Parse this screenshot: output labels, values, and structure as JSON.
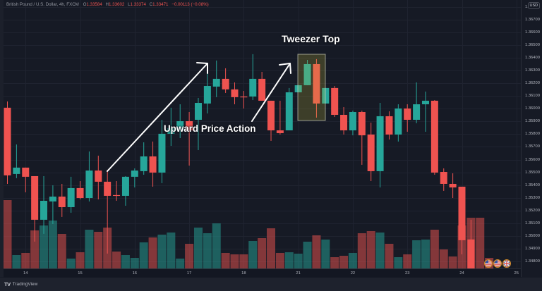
{
  "header": {
    "symbol": "British Pound / U.S. Dollar, 4h, FXCM",
    "o_label": "O",
    "o": "1.33584",
    "h_label": "H",
    "h": "1.33602",
    "l_label": "L",
    "l": "1.33374",
    "c_label": "C",
    "c": "1.33471",
    "change": "−0.00113 (−0.08%)"
  },
  "price_axis": {
    "currency_badge": "USD"
  },
  "annotations": {
    "tweezer_label": "Tweezer Top",
    "upward_label": "Upward Price Action"
  },
  "events": [
    {
      "icon": "us-flag-icon"
    },
    {
      "icon": "us-flag-icon"
    },
    {
      "icon": "uk-flag-icon"
    }
  ],
  "footer": {
    "brand_logo": "TV",
    "brand": "TradingView"
  },
  "colors": {
    "up": "#26a69a",
    "down": "#ef5350",
    "volume_up": "rgba(38,166,154,0.5)",
    "volume_down": "rgba(239,83,80,0.5)",
    "grid": "#1f2330",
    "annotation": "#ffffff",
    "highlight_box": "rgba(200,190,60,0.22)"
  },
  "chart_data": {
    "type": "candlestick",
    "title": "British Pound / U.S. Dollar, 4h, FXCM",
    "xlabel": "",
    "ylabel": "USD",
    "ylim": [
      1.34744,
      1.36855
    ],
    "grid": true,
    "yticks": [
      "1.34800",
      "1.34900",
      "1.35000",
      "1.35100",
      "1.35200",
      "1.35300",
      "1.35400",
      "1.35500",
      "1.35600",
      "1.35700",
      "1.35800",
      "1.35900",
      "1.36000",
      "1.36100",
      "1.36200",
      "1.36300",
      "1.36400",
      "1.36500",
      "1.36600",
      "1.36700",
      "1.36800"
    ],
    "xticks": [
      {
        "label": "14",
        "index": 2
      },
      {
        "label": "15",
        "index": 8
      },
      {
        "label": "16",
        "index": 14
      },
      {
        "label": "17",
        "index": 20
      },
      {
        "label": "18",
        "index": 26
      },
      {
        "label": "21",
        "index": 32
      },
      {
        "label": "22",
        "index": 38
      },
      {
        "label": "23",
        "index": 44
      },
      {
        "label": "24",
        "index": 50
      },
      {
        "label": "25",
        "index": 56
      }
    ],
    "candles": [
      {
        "o": 1.36008,
        "h": 1.36057,
        "l": 1.35409,
        "c": 1.35476,
        "v": 97
      },
      {
        "o": 1.35487,
        "h": 1.35719,
        "l": 1.35454,
        "c": 1.35537,
        "v": 19
      },
      {
        "o": 1.35537,
        "h": 1.35537,
        "l": 1.35343,
        "c": 1.35465,
        "v": 22
      },
      {
        "o": 1.3547,
        "h": 1.3547,
        "l": 1.34955,
        "c": 1.35127,
        "v": 54
      },
      {
        "o": 1.35127,
        "h": 1.3547,
        "l": 1.35016,
        "c": 1.35276,
        "v": 61
      },
      {
        "o": 1.35271,
        "h": 1.35398,
        "l": 1.35093,
        "c": 1.35309,
        "v": 68
      },
      {
        "o": 1.35309,
        "h": 1.35409,
        "l": 1.35149,
        "c": 1.35226,
        "v": 49
      },
      {
        "o": 1.35226,
        "h": 1.35465,
        "l": 1.35182,
        "c": 1.35376,
        "v": 14
      },
      {
        "o": 1.35376,
        "h": 1.35431,
        "l": 1.35287,
        "c": 1.35298,
        "v": 23
      },
      {
        "o": 1.35298,
        "h": 1.35664,
        "l": 1.35271,
        "c": 1.35514,
        "v": 55
      },
      {
        "o": 1.35514,
        "h": 1.35631,
        "l": 1.35287,
        "c": 1.35426,
        "v": 52
      },
      {
        "o": 1.35426,
        "h": 1.3552,
        "l": 1.34861,
        "c": 1.35315,
        "v": 58
      },
      {
        "o": 1.35321,
        "h": 1.35431,
        "l": 1.35276,
        "c": 1.35315,
        "v": 24
      },
      {
        "o": 1.35315,
        "h": 1.3547,
        "l": 1.35237,
        "c": 1.35465,
        "v": 19
      },
      {
        "o": 1.35465,
        "h": 1.35531,
        "l": 1.35381,
        "c": 1.35514,
        "v": 15
      },
      {
        "o": 1.35509,
        "h": 1.35736,
        "l": 1.35481,
        "c": 1.35625,
        "v": 37
      },
      {
        "o": 1.35625,
        "h": 1.35742,
        "l": 1.35387,
        "c": 1.35498,
        "v": 44
      },
      {
        "o": 1.35498,
        "h": 1.35913,
        "l": 1.35415,
        "c": 1.35803,
        "v": 48
      },
      {
        "o": 1.35803,
        "h": 1.36008,
        "l": 1.35708,
        "c": 1.35847,
        "v": 51
      },
      {
        "o": 1.3583,
        "h": 1.36035,
        "l": 1.35769,
        "c": 1.35902,
        "v": 14
      },
      {
        "o": 1.35902,
        "h": 1.35974,
        "l": 1.35553,
        "c": 1.3583,
        "v": 35
      },
      {
        "o": 1.35913,
        "h": 1.36085,
        "l": 1.35675,
        "c": 1.36046,
        "v": 58
      },
      {
        "o": 1.36041,
        "h": 1.3629,
        "l": 1.35963,
        "c": 1.36179,
        "v": 50
      },
      {
        "o": 1.36174,
        "h": 1.36379,
        "l": 1.36091,
        "c": 1.36235,
        "v": 64
      },
      {
        "o": 1.36235,
        "h": 1.36318,
        "l": 1.36124,
        "c": 1.36152,
        "v": 22
      },
      {
        "o": 1.36152,
        "h": 1.36207,
        "l": 1.36035,
        "c": 1.36091,
        "v": 20
      },
      {
        "o": 1.36096,
        "h": 1.3614,
        "l": 1.36002,
        "c": 1.36094,
        "v": 20
      },
      {
        "o": 1.36096,
        "h": 1.36429,
        "l": 1.36068,
        "c": 1.36235,
        "v": 39
      },
      {
        "o": 1.36235,
        "h": 1.3629,
        "l": 1.36063,
        "c": 1.36063,
        "v": 43
      },
      {
        "o": 1.36063,
        "h": 1.36063,
        "l": 1.35747,
        "c": 1.3583,
        "v": 57
      },
      {
        "o": 1.3583,
        "h": 1.36063,
        "l": 1.35797,
        "c": 1.35808,
        "v": 22
      },
      {
        "o": 1.3583,
        "h": 1.36163,
        "l": 1.3583,
        "c": 1.36129,
        "v": 23
      },
      {
        "o": 1.36129,
        "h": 1.36185,
        "l": 1.36129,
        "c": 1.36185,
        "v": 21
      },
      {
        "o": 1.36185,
        "h": 1.36384,
        "l": 1.36185,
        "c": 1.36351,
        "v": 38
      },
      {
        "o": 1.36351,
        "h": 1.3639,
        "l": 1.3593,
        "c": 1.36041,
        "v": 47
      },
      {
        "o": 1.36041,
        "h": 1.36163,
        "l": 1.36041,
        "c": 1.36163,
        "v": 41
      },
      {
        "o": 1.36163,
        "h": 1.36179,
        "l": 1.35935,
        "c": 1.35952,
        "v": 16
      },
      {
        "o": 1.35952,
        "h": 1.36013,
        "l": 1.35797,
        "c": 1.3583,
        "v": 18
      },
      {
        "o": 1.3583,
        "h": 1.35985,
        "l": 1.35791,
        "c": 1.35974,
        "v": 22
      },
      {
        "o": 1.35974,
        "h": 1.35985,
        "l": 1.35559,
        "c": 1.35791,
        "v": 50
      },
      {
        "o": 1.35797,
        "h": 1.35891,
        "l": 1.35431,
        "c": 1.35509,
        "v": 53
      },
      {
        "o": 1.35509,
        "h": 1.36046,
        "l": 1.35381,
        "c": 1.35941,
        "v": 51
      },
      {
        "o": 1.35941,
        "h": 1.3598,
        "l": 1.35758,
        "c": 1.35797,
        "v": 35
      },
      {
        "o": 1.35797,
        "h": 1.36035,
        "l": 1.35742,
        "c": 1.36002,
        "v": 16
      },
      {
        "o": 1.36002,
        "h": 1.36035,
        "l": 1.35819,
        "c": 1.35913,
        "v": 20
      },
      {
        "o": 1.35913,
        "h": 1.36207,
        "l": 1.35886,
        "c": 1.36035,
        "v": 40
      },
      {
        "o": 1.36035,
        "h": 1.36135,
        "l": 1.35819,
        "c": 1.36063,
        "v": 41
      },
      {
        "o": 1.36063,
        "h": 1.36068,
        "l": 1.35481,
        "c": 1.35498,
        "v": 55
      },
      {
        "o": 1.35503,
        "h": 1.35531,
        "l": 1.35354,
        "c": 1.35409,
        "v": 27
      },
      {
        "o": 1.35409,
        "h": 1.35492,
        "l": 1.35298,
        "c": 1.35381,
        "v": 17
      },
      {
        "o": 1.35387,
        "h": 1.35387,
        "l": 1.34855,
        "c": 1.34966,
        "v": 61
      },
      {
        "o": 1.34972,
        "h": 1.35127,
        "l": 1.347,
        "c": 1.3474,
        "v": 72
      }
    ],
    "trailing_volume": [
      {
        "v": 72,
        "dir": "down"
      },
      {
        "v": 15,
        "dir": "down"
      }
    ],
    "annotations": [
      {
        "type": "text",
        "text": "Tweezer Top"
      },
      {
        "type": "text",
        "text": "Upward Price Action"
      },
      {
        "type": "box",
        "label": "tweezer-top-highlight",
        "candle_range": [
          32,
          35
        ]
      },
      {
        "type": "arrow",
        "label": "uptrend-arrow-1"
      },
      {
        "type": "arrow",
        "label": "uptrend-arrow-2"
      }
    ]
  }
}
